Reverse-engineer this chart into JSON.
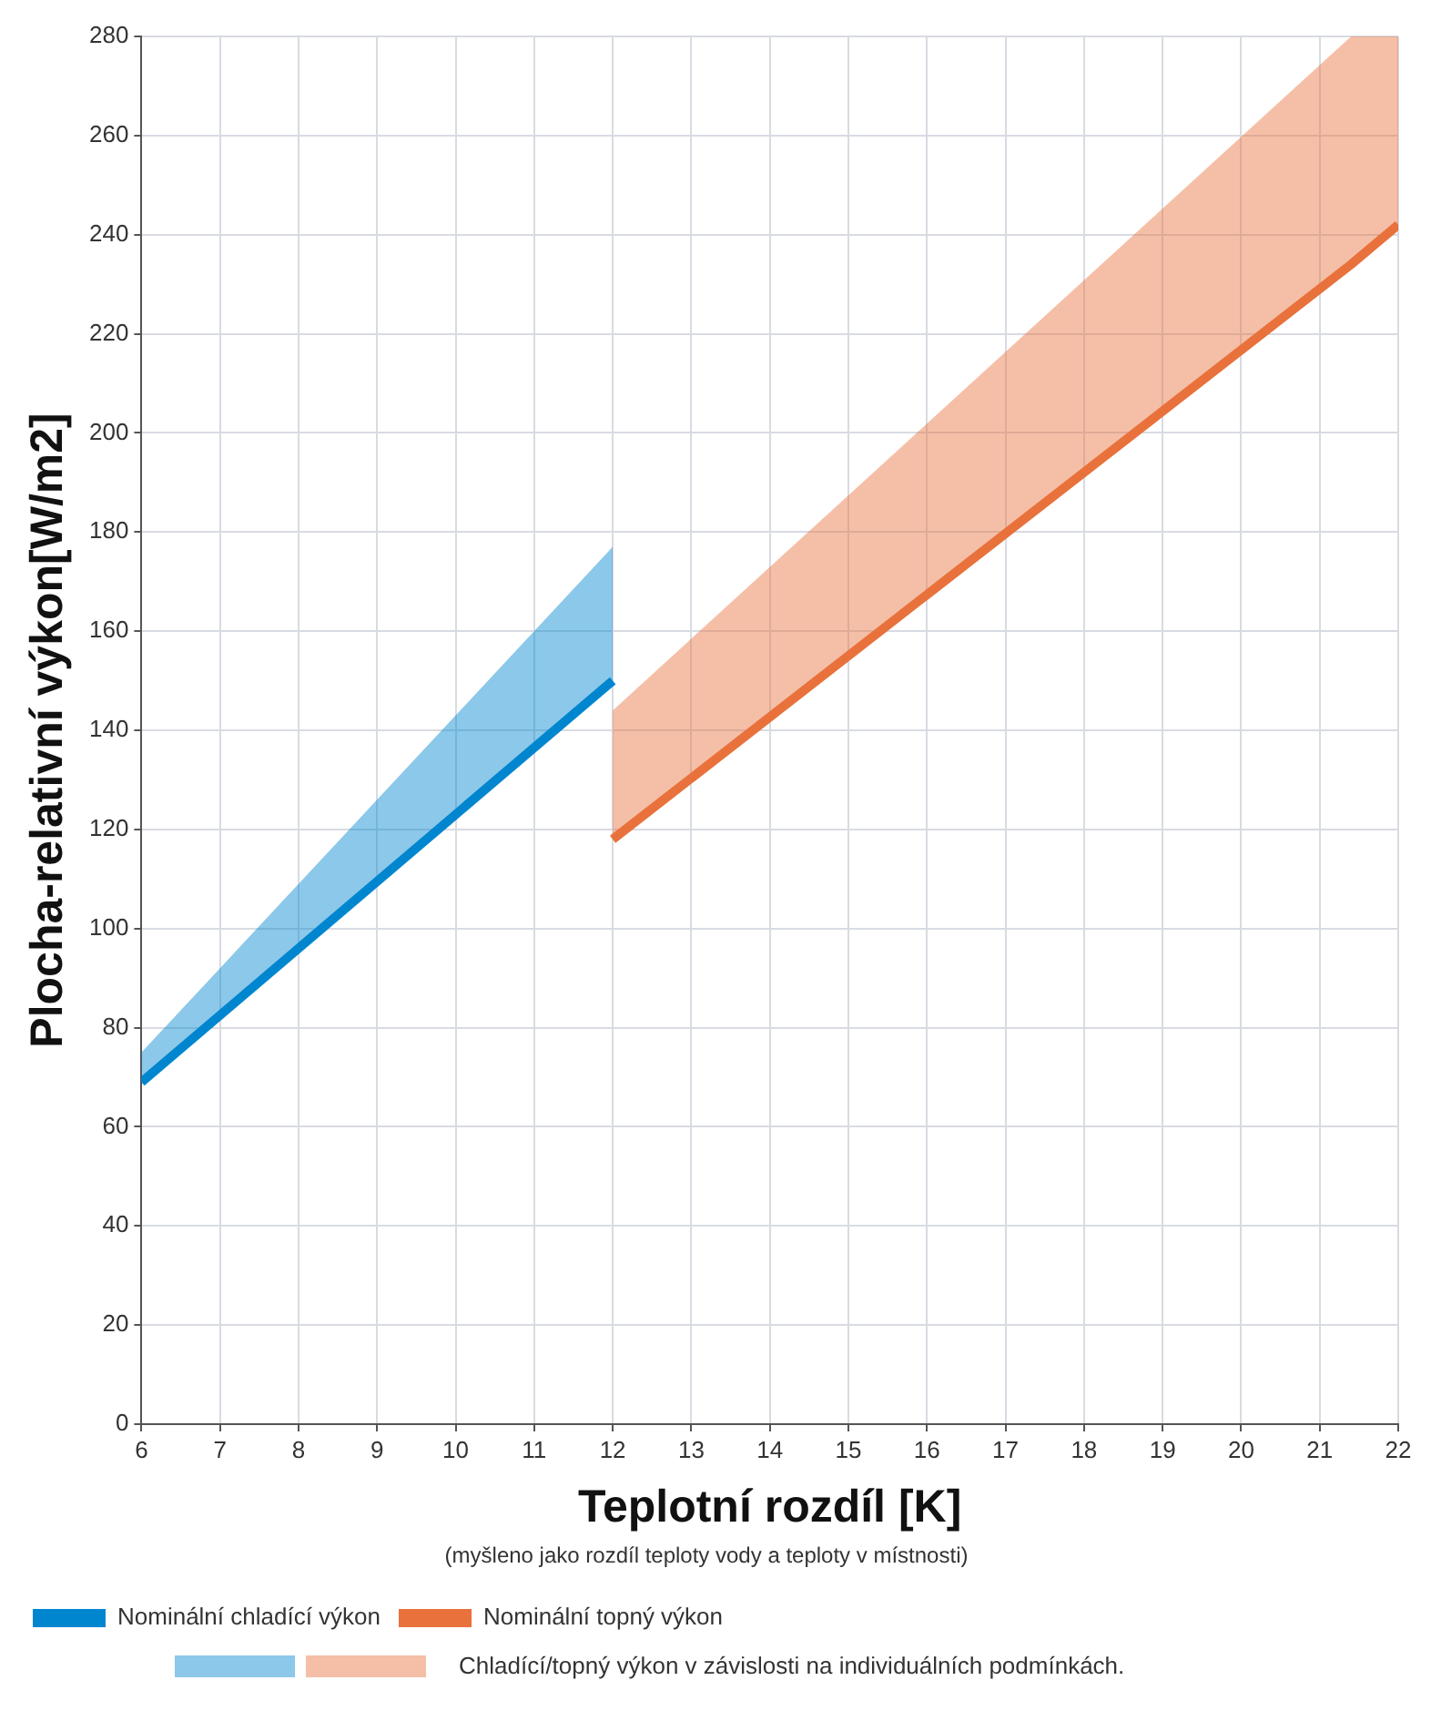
{
  "chart_data": {
    "type": "line",
    "xlabel": "Teplotní rozdíl [K]",
    "ylabel": "Plocha-relativní výkon[W/m2]",
    "annotations": [
      "(myšleno jako rozdíl teploty vody a teploty v místnosti)",
      "Chladící/topný výkon v závislosti na individuálních podmínkách."
    ],
    "series": [
      {
        "name": "Nominální chladící výkon",
        "color": "#0086cf",
        "x": [
          6,
          12
        ],
        "values": [
          69,
          150
        ],
        "lower": [
          69,
          150
        ],
        "upper": [
          75,
          177
        ]
      },
      {
        "name": "Nominální topný výkon",
        "color": "#e8713c",
        "x": [
          12,
          21.4,
          22
        ],
        "values": [
          118,
          234,
          242
        ],
        "lower": [
          118,
          234,
          242
        ],
        "upper": [
          144,
          280,
          280
        ]
      }
    ],
    "xlim": [
      6,
      22
    ],
    "xticks": [
      6,
      7,
      8,
      9,
      10,
      11,
      12,
      13,
      14,
      15,
      16,
      17,
      18,
      19,
      20,
      21,
      22
    ],
    "ylim": [
      0,
      280
    ],
    "yticks": [
      0,
      20,
      40,
      60,
      80,
      100,
      120,
      140,
      160,
      180,
      200,
      220,
      240,
      260,
      280
    ],
    "grid": true,
    "legend": "bottom",
    "marker": "none",
    "line_style": "solid"
  }
}
